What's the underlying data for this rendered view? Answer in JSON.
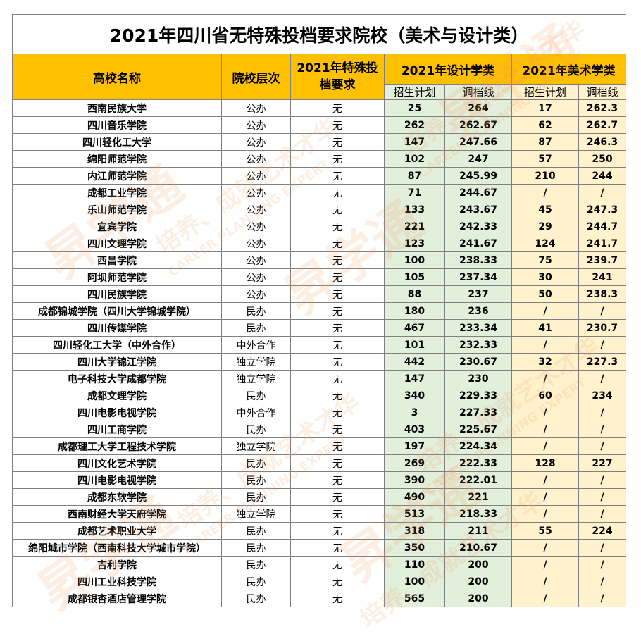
{
  "title": "2021年四川省无特殊投档要求院校（美术与设计类）",
  "headers": {
    "school_name": "高校名称",
    "school_level": "院校层次",
    "special_req": "2021年特殊投档要求",
    "design_group": "2021年设计学类",
    "art_group": "2021年美术学类",
    "plan": "招生计划",
    "score": "调档线"
  },
  "watermarks": {
    "logo": "昇学通",
    "slogan": "培养、成就艺术才华",
    "english": "CAREER PLANNING EXPERT"
  },
  "rows": [
    {
      "name": "西南民族大学",
      "level": "公办",
      "req": "无",
      "d_plan": "25",
      "d_score": "264",
      "a_plan": "17",
      "a_score": "262.3"
    },
    {
      "name": "四川音乐学院",
      "level": "公办",
      "req": "无",
      "d_plan": "262",
      "d_score": "262.67",
      "a_plan": "62",
      "a_score": "262.7"
    },
    {
      "name": "四川轻化工大学",
      "level": "公办",
      "req": "无",
      "d_plan": "147",
      "d_score": "247.66",
      "a_plan": "87",
      "a_score": "246.3"
    },
    {
      "name": "绵阳师范学院",
      "level": "公办",
      "req": "无",
      "d_plan": "102",
      "d_score": "247",
      "a_plan": "57",
      "a_score": "250"
    },
    {
      "name": "内江师范学院",
      "level": "公办",
      "req": "无",
      "d_plan": "87",
      "d_score": "245.99",
      "a_plan": "210",
      "a_score": "244"
    },
    {
      "name": "成都工业学院",
      "level": "公办",
      "req": "无",
      "d_plan": "71",
      "d_score": "244.67",
      "a_plan": "/",
      "a_score": "/"
    },
    {
      "name": "乐山师范学院",
      "level": "公办",
      "req": "无",
      "d_plan": "133",
      "d_score": "243.67",
      "a_plan": "45",
      "a_score": "247.3"
    },
    {
      "name": "宜宾学院",
      "level": "公办",
      "req": "无",
      "d_plan": "221",
      "d_score": "242.33",
      "a_plan": "29",
      "a_score": "244.7"
    },
    {
      "name": "四川文理学院",
      "level": "公办",
      "req": "无",
      "d_plan": "123",
      "d_score": "241.67",
      "a_plan": "124",
      "a_score": "241.7"
    },
    {
      "name": "西昌学院",
      "level": "公办",
      "req": "无",
      "d_plan": "100",
      "d_score": "238.33",
      "a_plan": "75",
      "a_score": "239.7"
    },
    {
      "name": "阿坝师范学院",
      "level": "公办",
      "req": "无",
      "d_plan": "105",
      "d_score": "237.34",
      "a_plan": "30",
      "a_score": "241"
    },
    {
      "name": "四川民族学院",
      "level": "公办",
      "req": "无",
      "d_plan": "88",
      "d_score": "237",
      "a_plan": "50",
      "a_score": "238.3"
    },
    {
      "name": "成都锦城学院（四川大学锦城学院）",
      "level": "民办",
      "req": "无",
      "d_plan": "180",
      "d_score": "236",
      "a_plan": "/",
      "a_score": "/"
    },
    {
      "name": "四川传媒学院",
      "level": "民办",
      "req": "无",
      "d_plan": "467",
      "d_score": "233.34",
      "a_plan": "41",
      "a_score": "230.7"
    },
    {
      "name": "四川轻化工大学（中外合作）",
      "level": "中外合作",
      "req": "无",
      "d_plan": "101",
      "d_score": "232.33",
      "a_plan": "/",
      "a_score": "/"
    },
    {
      "name": "四川大学锦江学院",
      "level": "独立学院",
      "req": "无",
      "d_plan": "442",
      "d_score": "230.67",
      "a_plan": "32",
      "a_score": "227.3"
    },
    {
      "name": "电子科技大学成都学院",
      "level": "独立学院",
      "req": "无",
      "d_plan": "147",
      "d_score": "230",
      "a_plan": "/",
      "a_score": "/"
    },
    {
      "name": "成都文理学院",
      "level": "民办",
      "req": "无",
      "d_plan": "340",
      "d_score": "229.33",
      "a_plan": "60",
      "a_score": "234"
    },
    {
      "name": "四川电影电视学院",
      "level": "中外合作",
      "req": "无",
      "d_plan": "3",
      "d_score": "227.33",
      "a_plan": "/",
      "a_score": "/"
    },
    {
      "name": "四川工商学院",
      "level": "民办",
      "req": "无",
      "d_plan": "403",
      "d_score": "225.67",
      "a_plan": "/",
      "a_score": "/"
    },
    {
      "name": "成都理工大学工程技术学院",
      "level": "独立学院",
      "req": "无",
      "d_plan": "197",
      "d_score": "224.34",
      "a_plan": "/",
      "a_score": "/"
    },
    {
      "name": "四川文化艺术学院",
      "level": "民办",
      "req": "无",
      "d_plan": "269",
      "d_score": "222.33",
      "a_plan": "128",
      "a_score": "227"
    },
    {
      "name": "四川电影电视学院",
      "level": "民办",
      "req": "无",
      "d_plan": "390",
      "d_score": "222.01",
      "a_plan": "/",
      "a_score": "/"
    },
    {
      "name": "成都东软学院",
      "level": "民办",
      "req": "无",
      "d_plan": "490",
      "d_score": "221",
      "a_plan": "/",
      "a_score": "/"
    },
    {
      "name": "西南财经大学天府学院",
      "level": "独立学院",
      "req": "无",
      "d_plan": "513",
      "d_score": "218.33",
      "a_plan": "/",
      "a_score": "/"
    },
    {
      "name": "成都艺术职业大学",
      "level": "民办",
      "req": "无",
      "d_plan": "318",
      "d_score": "211",
      "a_plan": "55",
      "a_score": "224"
    },
    {
      "name": "绵阳城市学院（西南科技大学城市学院）",
      "level": "民办",
      "req": "无",
      "d_plan": "350",
      "d_score": "210.67",
      "a_plan": "/",
      "a_score": "/"
    },
    {
      "name": "吉利学院",
      "level": "民办",
      "req": "无",
      "d_plan": "110",
      "d_score": "200",
      "a_plan": "/",
      "a_score": "/"
    },
    {
      "name": "四川工业科技学院",
      "level": "民办",
      "req": "无",
      "d_plan": "100",
      "d_score": "200",
      "a_plan": "/",
      "a_score": "/"
    },
    {
      "name": "成都银杏酒店管理学院",
      "level": "民办",
      "req": "无",
      "d_plan": "565",
      "d_score": "200",
      "a_plan": "/",
      "a_score": "/"
    }
  ]
}
